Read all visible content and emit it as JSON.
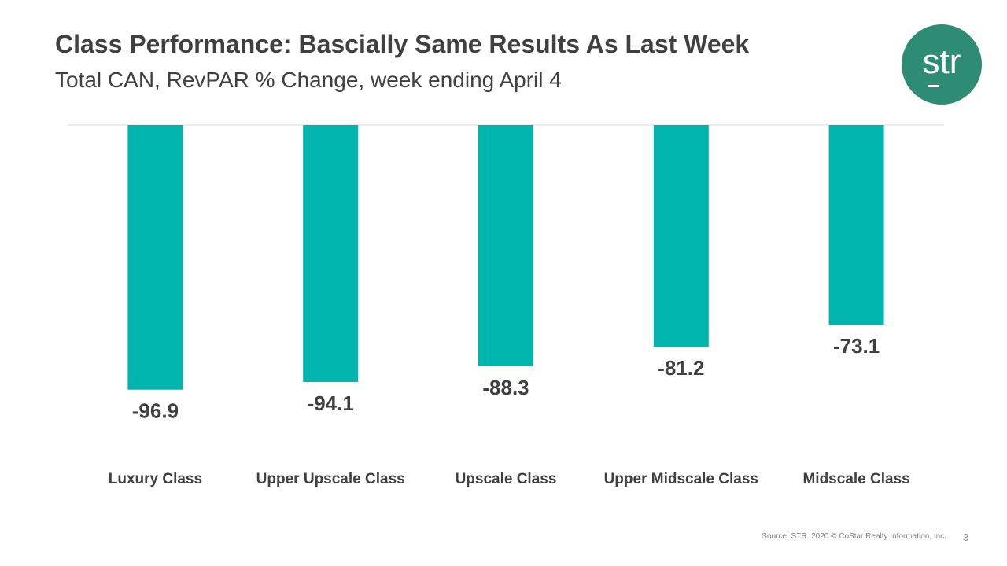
{
  "header": {
    "title": "Class Performance: Bascially Same Results As Last Week",
    "subtitle": "Total CAN, RevPAR % Change, week ending April 4"
  },
  "logo": {
    "text": "str",
    "color": "#2e8b74"
  },
  "chart_data": {
    "type": "bar",
    "title": "",
    "xlabel": "",
    "ylabel": "",
    "categories": [
      "Luxury Class",
      "Upper Upscale Class",
      "Upscale Class",
      "Upper Midscale Class",
      "Midscale Class"
    ],
    "values": [
      -96.9,
      -94.1,
      -88.3,
      -81.2,
      -73.1
    ],
    "data_labels": [
      "-96.9",
      "-94.1",
      "-88.3",
      "-81.2",
      "-73.1"
    ],
    "ylim": [
      -100,
      0
    ],
    "grid": false,
    "legend": "none",
    "bar_color": "#00b5ad"
  },
  "footer": {
    "source": "Source: STR. 2020 © CoStar Realty Information, Inc.",
    "page_number": "3"
  }
}
